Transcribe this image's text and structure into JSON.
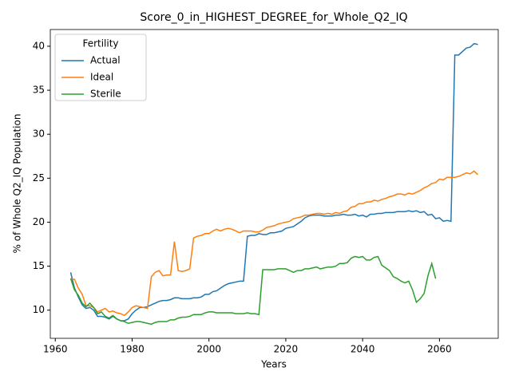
{
  "chart_data": {
    "type": "line",
    "title": "Score_0_in_HIGHEST_DEGREE_for_Whole_Q2_IQ",
    "x_label": "Years",
    "y_label": "% of Whole Q2_IQ Population",
    "x": [
      1964,
      1965,
      1966,
      1967,
      1968,
      1969,
      1970,
      1971,
      1972,
      1973,
      1974,
      1975,
      1976,
      1977,
      1978,
      1979,
      1980,
      1981,
      1982,
      1983,
      1984,
      1985,
      1986,
      1987,
      1988,
      1989,
      1990,
      1991,
      1992,
      1993,
      1994,
      1995,
      1996,
      1997,
      1998,
      1999,
      2000,
      2001,
      2002,
      2003,
      2004,
      2005,
      2006,
      2007,
      2008,
      2009,
      2010,
      2011,
      2012,
      2013,
      2014,
      2015,
      2016,
      2017,
      2018,
      2019,
      2020,
      2021,
      2022,
      2023,
      2024,
      2025,
      2026,
      2027,
      2028,
      2029,
      2030,
      2031,
      2032,
      2033,
      2034,
      2035,
      2036,
      2037,
      2038,
      2039,
      2040,
      2041,
      2042,
      2043,
      2044,
      2045,
      2046,
      2047,
      2048,
      2049,
      2050,
      2051,
      2052,
      2053,
      2054,
      2055,
      2056,
      2057,
      2058,
      2059,
      2060,
      2061,
      2062,
      2063,
      2064,
      2065,
      2066,
      2067,
      2068,
      2069,
      2070
    ],
    "series": [
      {
        "name": "Actual",
        "color": "#1f77b4",
        "values": [
          14.3,
          12.5,
          11.5,
          10.6,
          10.2,
          10.3,
          10.0,
          9.3,
          9.3,
          9.2,
          9.0,
          9.3,
          9.0,
          8.8,
          8.8,
          9.0,
          9.6,
          10.0,
          10.3,
          10.3,
          10.4,
          10.6,
          10.8,
          11.0,
          11.1,
          11.1,
          11.2,
          11.4,
          11.4,
          11.3,
          11.3,
          11.3,
          11.4,
          11.4,
          11.5,
          11.8,
          11.8,
          12.1,
          12.2,
          12.5,
          12.8,
          13.0,
          13.1,
          13.2,
          13.3,
          13.3,
          18.4,
          18.5,
          18.5,
          18.7,
          18.6,
          18.6,
          18.8,
          18.8,
          18.9,
          19.0,
          19.3,
          19.4,
          19.5,
          19.8,
          20.1,
          20.5,
          20.7,
          20.8,
          20.8,
          20.8,
          20.7,
          20.7,
          20.7,
          20.8,
          20.8,
          20.9,
          20.8,
          20.8,
          20.9,
          20.7,
          20.8,
          20.6,
          20.9,
          20.9,
          21.0,
          21.0,
          21.1,
          21.1,
          21.1,
          21.2,
          21.2,
          21.2,
          21.3,
          21.2,
          21.3,
          21.1,
          21.2,
          20.8,
          20.9,
          20.4,
          20.5,
          20.1,
          20.2,
          20.1,
          39.0,
          39.0,
          39.4,
          39.8,
          39.9,
          40.3,
          40.2
        ]
      },
      {
        "name": "Ideal",
        "color": "#ff7f0e",
        "values": [
          13.6,
          13.5,
          12.5,
          11.8,
          10.5,
          10.5,
          10.3,
          9.8,
          10.0,
          10.2,
          9.8,
          9.9,
          9.7,
          9.6,
          9.4,
          9.8,
          10.3,
          10.5,
          10.4,
          10.3,
          10.2,
          13.8,
          14.3,
          14.5,
          13.9,
          14.0,
          14.0,
          17.8,
          14.5,
          14.4,
          14.5,
          14.7,
          18.2,
          18.4,
          18.5,
          18.7,
          18.7,
          19.0,
          19.2,
          19.0,
          19.2,
          19.3,
          19.2,
          19.0,
          18.8,
          19.0,
          19.0,
          19.0,
          18.9,
          18.9,
          19.1,
          19.4,
          19.5,
          19.6,
          19.8,
          19.9,
          20.0,
          20.1,
          20.4,
          20.5,
          20.6,
          20.8,
          20.8,
          20.9,
          21.0,
          21.0,
          20.9,
          21.0,
          20.9,
          21.1,
          21.0,
          21.2,
          21.3,
          21.7,
          21.8,
          22.1,
          22.1,
          22.3,
          22.3,
          22.5,
          22.4,
          22.6,
          22.7,
          22.9,
          23.0,
          23.2,
          23.2,
          23.1,
          23.3,
          23.2,
          23.4,
          23.6,
          23.9,
          24.1,
          24.4,
          24.5,
          24.9,
          24.8,
          25.1,
          25.1,
          25.1,
          25.2,
          25.4,
          25.6,
          25.5,
          25.8,
          25.4
        ]
      },
      {
        "name": "Sterile",
        "color": "#2ca02c",
        "values": [
          13.6,
          12.3,
          11.7,
          10.8,
          10.4,
          10.8,
          10.3,
          9.6,
          9.8,
          9.3,
          9.1,
          9.4,
          9.0,
          8.8,
          8.7,
          8.5,
          8.6,
          8.7,
          8.7,
          8.6,
          8.5,
          8.4,
          8.6,
          8.7,
          8.7,
          8.7,
          8.9,
          8.9,
          9.1,
          9.2,
          9.2,
          9.3,
          9.5,
          9.5,
          9.5,
          9.7,
          9.8,
          9.8,
          9.7,
          9.7,
          9.7,
          9.7,
          9.7,
          9.6,
          9.6,
          9.6,
          9.7,
          9.6,
          9.6,
          9.5,
          14.6,
          14.6,
          14.6,
          14.6,
          14.7,
          14.7,
          14.7,
          14.5,
          14.3,
          14.5,
          14.5,
          14.7,
          14.7,
          14.8,
          14.9,
          14.7,
          14.8,
          14.9,
          14.9,
          15.0,
          15.3,
          15.3,
          15.4,
          15.9,
          16.1,
          16.0,
          16.1,
          15.7,
          15.7,
          16.0,
          16.1,
          15.1,
          14.8,
          14.5,
          13.8,
          13.6,
          13.3,
          13.1,
          13.3,
          12.3,
          10.9,
          11.3,
          11.9,
          13.9,
          15.3,
          13.6,
          null,
          null,
          null,
          null,
          null,
          null,
          null,
          null,
          null,
          null,
          null
        ]
      }
    ],
    "xlim": [
      1958.7,
      2075.3
    ],
    "ylim": [
      6.8,
      41.9
    ],
    "xticks": [
      1960,
      1980,
      2000,
      2020,
      2040,
      2060
    ],
    "yticks": [
      10,
      15,
      20,
      25,
      30,
      35,
      40
    ],
    "grid": false,
    "legend_title": "Fertility",
    "legend_loc": "upper left"
  }
}
